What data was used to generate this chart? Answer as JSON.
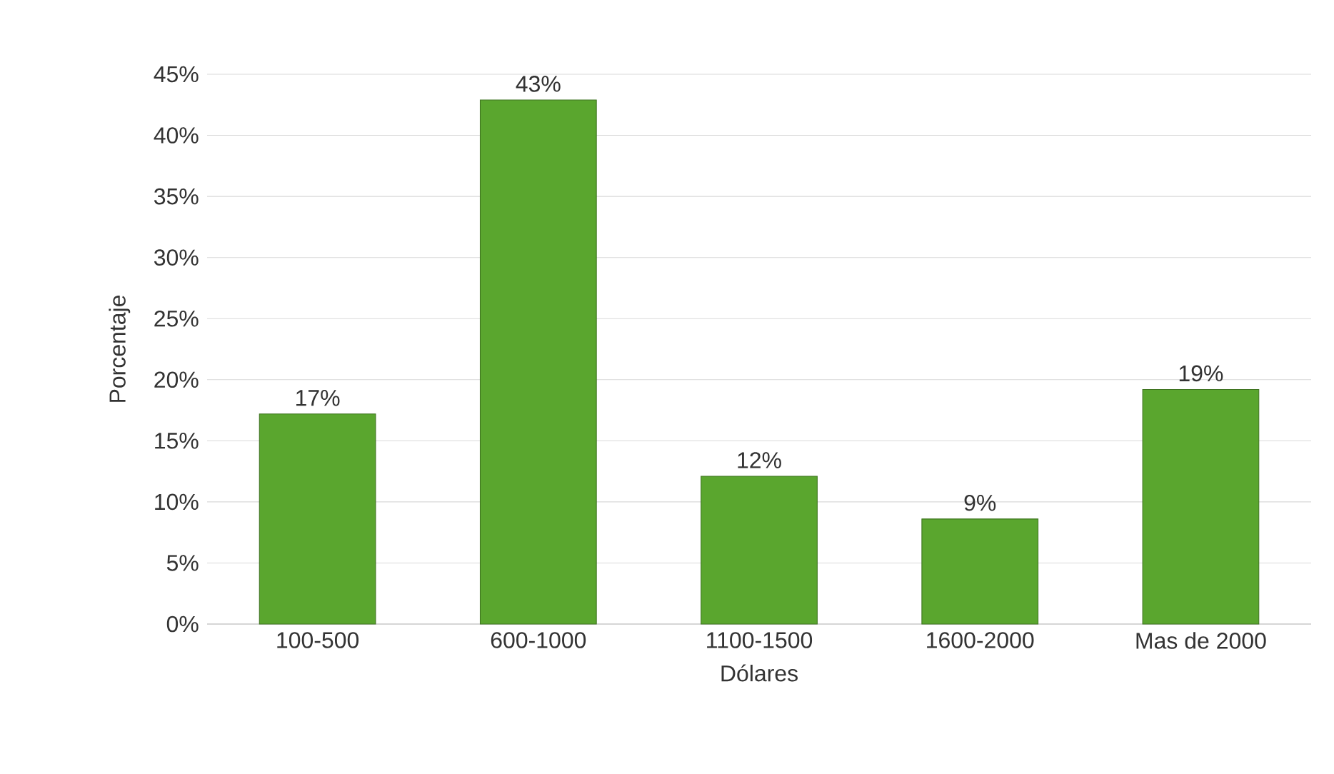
{
  "chart_data": {
    "type": "bar",
    "xlabel": "Dólares",
    "ylabel": "Porcentaje",
    "categories": [
      "100-500",
      "600-1000",
      "1100-1500",
      "1600-2000",
      "Mas de 2000"
    ],
    "values": [
      17.2,
      42.9,
      12.1,
      8.6,
      19.2
    ],
    "value_labels": [
      "17%",
      "43%",
      "12%",
      "9%",
      "19%"
    ],
    "color": "#5aa62e",
    "ylim": [
      0,
      45
    ],
    "yticks": [
      {
        "value": 0,
        "label": "0%"
      },
      {
        "value": 5,
        "label": "5%"
      },
      {
        "value": 10,
        "label": "10%"
      },
      {
        "value": 15,
        "label": "15%"
      },
      {
        "value": 20,
        "label": "20%"
      },
      {
        "value": 25,
        "label": "25%"
      },
      {
        "value": 30,
        "label": "30%"
      },
      {
        "value": 35,
        "label": "35%"
      },
      {
        "value": 40,
        "label": "40%"
      },
      {
        "value": 45,
        "label": "45%"
      }
    ],
    "grid": "y"
  }
}
